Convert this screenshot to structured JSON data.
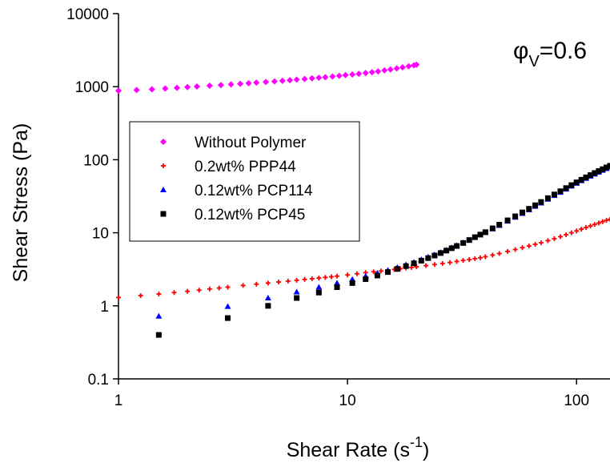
{
  "chart_data": {
    "type": "scatter",
    "xlabel": "Shear Rate (s",
    "xlabel_sup": "-1",
    "xlabel_end": ")",
    "ylabel": "Shear Stress (Pa)",
    "x_scale": "log",
    "y_scale": "log",
    "xlim": [
      1,
      140
    ],
    "ylim": [
      0.1,
      10000
    ],
    "x_ticks": [
      1,
      10,
      100
    ],
    "x_tick_labels": [
      "1",
      "10",
      "100"
    ],
    "y_ticks": [
      0.1,
      1,
      10,
      100,
      1000,
      10000
    ],
    "y_tick_labels": [
      "0.1",
      "1",
      "10",
      "100",
      "1000",
      "10000"
    ],
    "grid": false,
    "legend_position": "left",
    "annotation": {
      "phi": "φ",
      "sub": "V",
      "rest": "=0.6"
    },
    "series": [
      {
        "name": "Without Polymer",
        "marker": "diamond",
        "color": "#ff00ff",
        "x": [
          1,
          1.2,
          1.4,
          1.6,
          1.8,
          2.0,
          2.2,
          2.5,
          2.8,
          3.1,
          3.4,
          3.7,
          4.0,
          4.4,
          4.8,
          5.2,
          5.6,
          6.0,
          6.5,
          7.0,
          7.5,
          8.0,
          8.6,
          9.2,
          9.8,
          10.5,
          11.2,
          12.0,
          12.8,
          13.6,
          14.5,
          15.4,
          16.4,
          17.4,
          18.5,
          19.5,
          20
        ],
        "y": [
          880,
          900,
          920,
          945,
          965,
          985,
          1005,
          1030,
          1050,
          1075,
          1095,
          1115,
          1135,
          1160,
          1180,
          1205,
          1225,
          1250,
          1275,
          1300,
          1325,
          1350,
          1380,
          1410,
          1440,
          1470,
          1500,
          1540,
          1580,
          1620,
          1670,
          1720,
          1780,
          1840,
          1900,
          1960,
          2000
        ]
      },
      {
        "name": "0.2wt% PPP44",
        "marker": "plus",
        "color": "#ff0000",
        "x": [
          1,
          1.25,
          1.5,
          1.75,
          2,
          2.25,
          2.5,
          2.75,
          3,
          3.5,
          4,
          4.5,
          5,
          5.5,
          6,
          6.5,
          7,
          7.5,
          8,
          8.5,
          9,
          10,
          11,
          12,
          13,
          14,
          15,
          16,
          17,
          18,
          19,
          20,
          22,
          24,
          26,
          28,
          30,
          32,
          34,
          36,
          38,
          40,
          43,
          46,
          50,
          54,
          58,
          62,
          66,
          70,
          75,
          80,
          85,
          90,
          95,
          100,
          105,
          110,
          115,
          120,
          125,
          130,
          135,
          140
        ],
        "y": [
          1.3,
          1.38,
          1.45,
          1.52,
          1.58,
          1.64,
          1.7,
          1.75,
          1.8,
          1.9,
          1.98,
          2.05,
          2.12,
          2.18,
          2.24,
          2.3,
          2.35,
          2.4,
          2.45,
          2.5,
          2.55,
          2.65,
          2.75,
          2.85,
          2.93,
          3.0,
          3.08,
          3.15,
          3.22,
          3.29,
          3.35,
          3.42,
          3.55,
          3.68,
          3.8,
          3.92,
          4.05,
          4.18,
          4.3,
          4.42,
          4.55,
          4.7,
          4.95,
          5.2,
          5.55,
          5.9,
          6.25,
          6.6,
          6.95,
          7.3,
          7.8,
          8.3,
          8.85,
          9.4,
          10.0,
          10.6,
          11.2,
          11.8,
          12.4,
          13.0,
          13.6,
          14.2,
          14.8,
          15.3
        ]
      },
      {
        "name": "0.12wt% PCP114",
        "marker": "triangle",
        "color": "#0000ff",
        "x": [
          1.5,
          3,
          4.5,
          6,
          7.5,
          9,
          10.5,
          12,
          13.5,
          15,
          16.5,
          18,
          19.5,
          21,
          22.5,
          24,
          25.5,
          27,
          28.5,
          30,
          32,
          34,
          36,
          38,
          40,
          43,
          46,
          50,
          54,
          58,
          62,
          66,
          70,
          75,
          80,
          85,
          90,
          95,
          100,
          105,
          110,
          115,
          120,
          125,
          130,
          135,
          140
        ],
        "y": [
          0.72,
          0.98,
          1.28,
          1.55,
          1.8,
          2.05,
          2.3,
          2.55,
          2.8,
          3.05,
          3.35,
          3.65,
          3.95,
          4.3,
          4.65,
          5.0,
          5.4,
          5.8,
          6.25,
          6.7,
          7.3,
          7.95,
          8.65,
          9.35,
          10.1,
          11.3,
          12.6,
          14.4,
          16.3,
          18.4,
          20.6,
          23.0,
          25.5,
          28.8,
          32.3,
          35.8,
          39.6,
          43.5,
          47.5,
          51.5,
          55.5,
          59.5,
          63.5,
          67.5,
          71.5,
          75.5,
          79.5
        ]
      },
      {
        "name": "0.12wt% PCP45",
        "marker": "square",
        "color": "#000000",
        "x": [
          1.5,
          3,
          4.5,
          6,
          7.5,
          9,
          10.5,
          12,
          13.5,
          15,
          16.5,
          18,
          19.5,
          21,
          22.5,
          24,
          25.5,
          27,
          28.5,
          30,
          32,
          34,
          36,
          38,
          40,
          43,
          46,
          50,
          54,
          58,
          62,
          66,
          70,
          75,
          80,
          85,
          90,
          95,
          100,
          105,
          110,
          115,
          120,
          125,
          130,
          135,
          140
        ],
        "y": [
          0.4,
          0.68,
          1.0,
          1.28,
          1.52,
          1.8,
          2.05,
          2.32,
          2.6,
          2.9,
          3.2,
          3.5,
          3.82,
          4.15,
          4.5,
          4.88,
          5.28,
          5.7,
          6.15,
          6.6,
          7.25,
          7.95,
          8.7,
          9.45,
          10.2,
          11.5,
          12.9,
          14.8,
          16.8,
          19.0,
          21.3,
          23.8,
          26.4,
          29.8,
          33.4,
          37.0,
          40.9,
          44.9,
          49.0,
          53.2,
          57.4,
          61.6,
          65.8,
          70.0,
          74.2,
          78.4,
          82.6
        ]
      }
    ]
  }
}
